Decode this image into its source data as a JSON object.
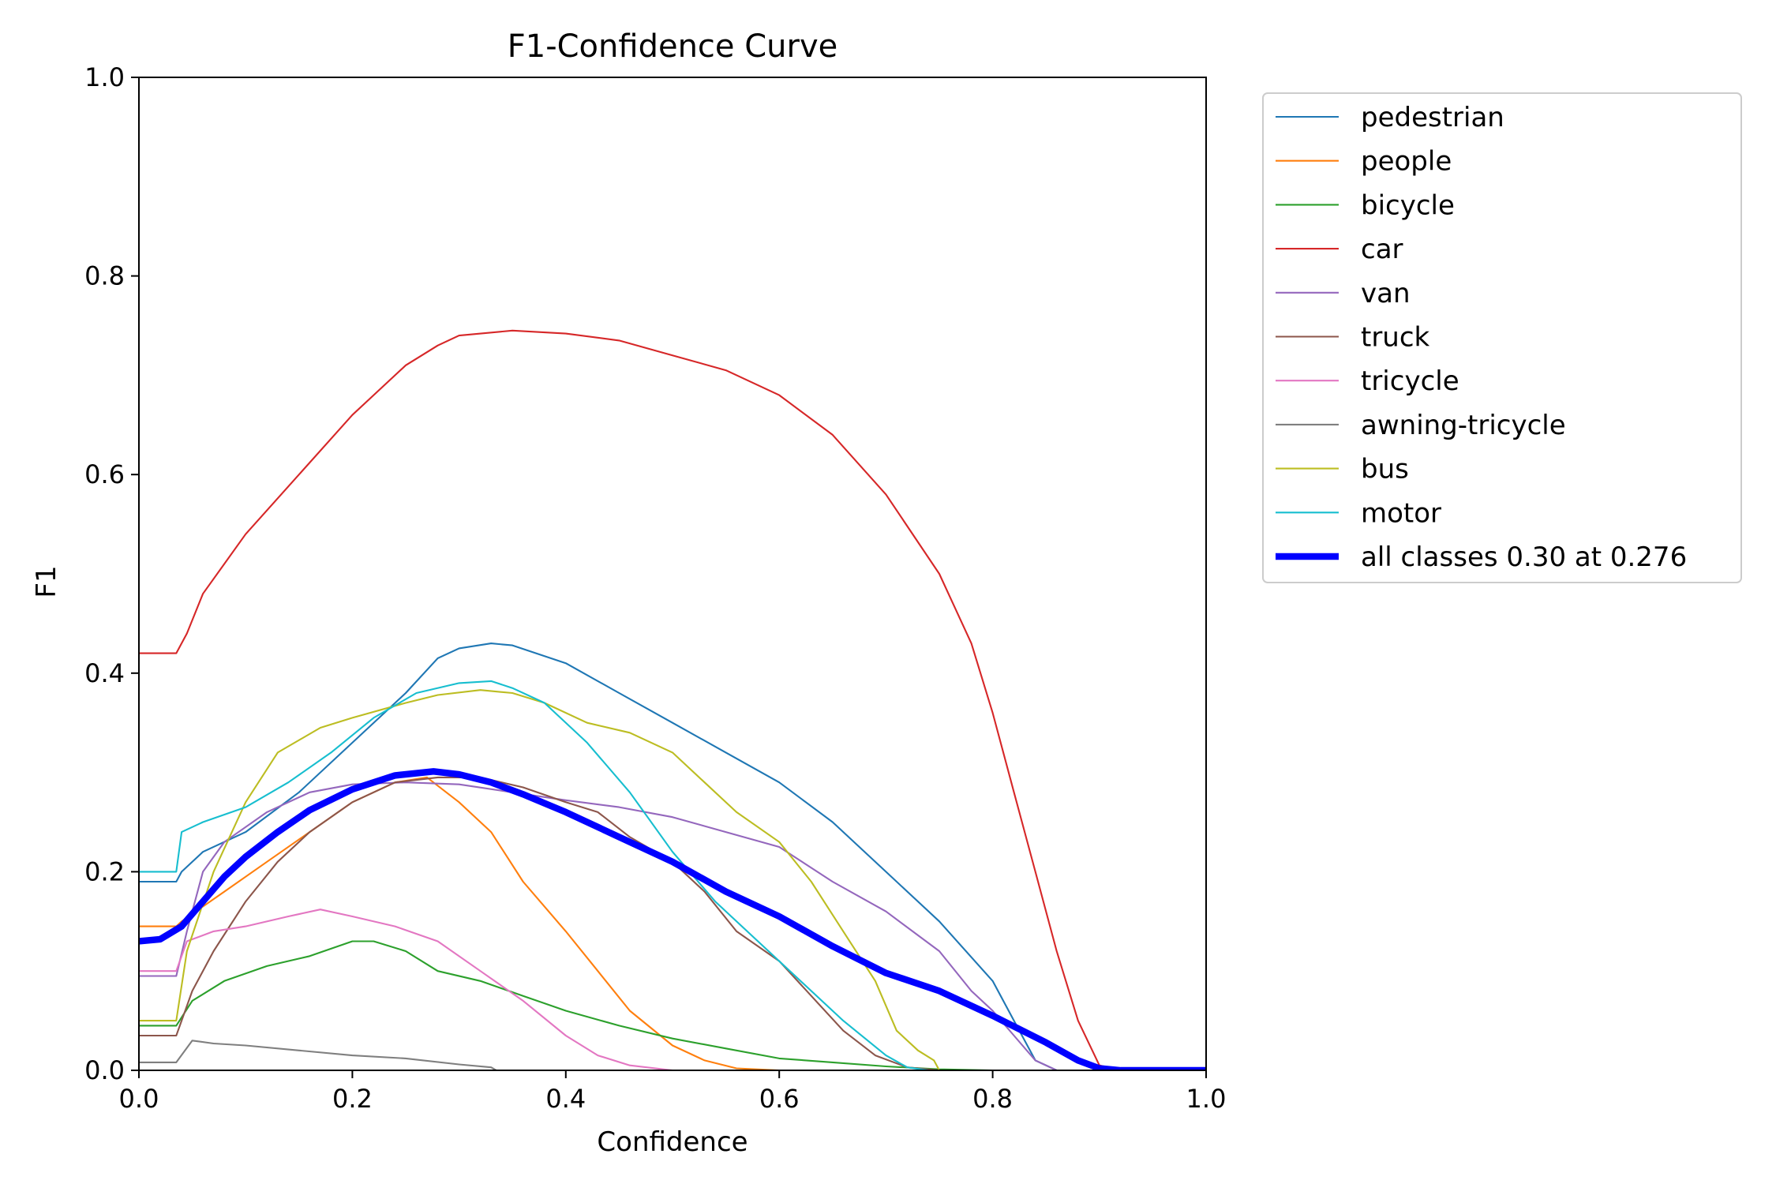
{
  "chart_data": {
    "type": "line",
    "title": "F1-Confidence Curve",
    "xlabel": "Confidence",
    "ylabel": "F1",
    "xlim": [
      0,
      1
    ],
    "ylim": [
      0,
      1
    ],
    "xticks": [
      "0.0",
      "0.2",
      "0.4",
      "0.6",
      "0.8",
      "1.0"
    ],
    "yticks": [
      "0.0",
      "0.2",
      "0.4",
      "0.6",
      "0.8",
      "1.0"
    ],
    "grid": false,
    "legend_position": "outside-top-right",
    "series": [
      {
        "name": "pedestrian",
        "color": "#1f77b4",
        "width": 1.5,
        "points": [
          [
            0,
            0.19
          ],
          [
            0.035,
            0.19
          ],
          [
            0.04,
            0.2
          ],
          [
            0.06,
            0.22
          ],
          [
            0.1,
            0.24
          ],
          [
            0.15,
            0.28
          ],
          [
            0.2,
            0.33
          ],
          [
            0.25,
            0.38
          ],
          [
            0.28,
            0.415
          ],
          [
            0.3,
            0.425
          ],
          [
            0.33,
            0.43
          ],
          [
            0.35,
            0.428
          ],
          [
            0.4,
            0.41
          ],
          [
            0.45,
            0.38
          ],
          [
            0.5,
            0.35
          ],
          [
            0.55,
            0.32
          ],
          [
            0.6,
            0.29
          ],
          [
            0.65,
            0.25
          ],
          [
            0.7,
            0.2
          ],
          [
            0.75,
            0.15
          ],
          [
            0.8,
            0.09
          ],
          [
            0.82,
            0.05
          ],
          [
            0.84,
            0.01
          ],
          [
            0.86,
            0
          ],
          [
            1,
            0
          ]
        ]
      },
      {
        "name": "people",
        "color": "#ff7f0e",
        "width": 1.5,
        "points": [
          [
            0,
            0.145
          ],
          [
            0.035,
            0.145
          ],
          [
            0.04,
            0.15
          ],
          [
            0.08,
            0.18
          ],
          [
            0.12,
            0.21
          ],
          [
            0.16,
            0.24
          ],
          [
            0.2,
            0.27
          ],
          [
            0.24,
            0.29
          ],
          [
            0.27,
            0.295
          ],
          [
            0.3,
            0.27
          ],
          [
            0.33,
            0.24
          ],
          [
            0.36,
            0.19
          ],
          [
            0.4,
            0.14
          ],
          [
            0.43,
            0.1
          ],
          [
            0.46,
            0.06
          ],
          [
            0.5,
            0.025
          ],
          [
            0.53,
            0.01
          ],
          [
            0.56,
            0.002
          ],
          [
            0.6,
            0
          ],
          [
            1,
            0
          ]
        ]
      },
      {
        "name": "bicycle",
        "color": "#2ca02c",
        "width": 1.5,
        "points": [
          [
            0,
            0.045
          ],
          [
            0.035,
            0.045
          ],
          [
            0.05,
            0.07
          ],
          [
            0.08,
            0.09
          ],
          [
            0.12,
            0.105
          ],
          [
            0.16,
            0.115
          ],
          [
            0.2,
            0.13
          ],
          [
            0.22,
            0.13
          ],
          [
            0.25,
            0.12
          ],
          [
            0.28,
            0.1
          ],
          [
            0.32,
            0.09
          ],
          [
            0.36,
            0.075
          ],
          [
            0.4,
            0.06
          ],
          [
            0.45,
            0.045
          ],
          [
            0.5,
            0.032
          ],
          [
            0.55,
            0.022
          ],
          [
            0.6,
            0.012
          ],
          [
            0.65,
            0.008
          ],
          [
            0.7,
            0.004
          ],
          [
            0.75,
            0.001
          ],
          [
            0.8,
            0
          ],
          [
            1,
            0
          ]
        ]
      },
      {
        "name": "car",
        "color": "#d62728",
        "width": 1.5,
        "points": [
          [
            0,
            0.42
          ],
          [
            0.035,
            0.42
          ],
          [
            0.045,
            0.44
          ],
          [
            0.06,
            0.48
          ],
          [
            0.08,
            0.51
          ],
          [
            0.1,
            0.54
          ],
          [
            0.15,
            0.6
          ],
          [
            0.2,
            0.66
          ],
          [
            0.25,
            0.71
          ],
          [
            0.28,
            0.73
          ],
          [
            0.3,
            0.74
          ],
          [
            0.35,
            0.745
          ],
          [
            0.4,
            0.742
          ],
          [
            0.45,
            0.735
          ],
          [
            0.5,
            0.72
          ],
          [
            0.55,
            0.705
          ],
          [
            0.6,
            0.68
          ],
          [
            0.65,
            0.64
          ],
          [
            0.7,
            0.58
          ],
          [
            0.75,
            0.5
          ],
          [
            0.78,
            0.43
          ],
          [
            0.8,
            0.36
          ],
          [
            0.82,
            0.28
          ],
          [
            0.84,
            0.2
          ],
          [
            0.86,
            0.12
          ],
          [
            0.88,
            0.05
          ],
          [
            0.9,
            0.005
          ],
          [
            0.92,
            0
          ],
          [
            1,
            0
          ]
        ]
      },
      {
        "name": "van",
        "color": "#9467bd",
        "width": 1.5,
        "points": [
          [
            0,
            0.095
          ],
          [
            0.035,
            0.095
          ],
          [
            0.045,
            0.14
          ],
          [
            0.06,
            0.2
          ],
          [
            0.08,
            0.23
          ],
          [
            0.12,
            0.26
          ],
          [
            0.16,
            0.28
          ],
          [
            0.2,
            0.288
          ],
          [
            0.25,
            0.29
          ],
          [
            0.3,
            0.288
          ],
          [
            0.35,
            0.28
          ],
          [
            0.4,
            0.272
          ],
          [
            0.45,
            0.265
          ],
          [
            0.5,
            0.255
          ],
          [
            0.55,
            0.24
          ],
          [
            0.6,
            0.225
          ],
          [
            0.65,
            0.19
          ],
          [
            0.7,
            0.16
          ],
          [
            0.75,
            0.12
          ],
          [
            0.78,
            0.08
          ],
          [
            0.8,
            0.06
          ],
          [
            0.82,
            0.035
          ],
          [
            0.84,
            0.01
          ],
          [
            0.86,
            0
          ],
          [
            1,
            0
          ]
        ]
      },
      {
        "name": "truck",
        "color": "#8c564b",
        "width": 1.5,
        "points": [
          [
            0,
            0.035
          ],
          [
            0.035,
            0.035
          ],
          [
            0.05,
            0.08
          ],
          [
            0.07,
            0.12
          ],
          [
            0.1,
            0.17
          ],
          [
            0.13,
            0.21
          ],
          [
            0.16,
            0.24
          ],
          [
            0.2,
            0.27
          ],
          [
            0.24,
            0.29
          ],
          [
            0.28,
            0.295
          ],
          [
            0.32,
            0.295
          ],
          [
            0.36,
            0.285
          ],
          [
            0.4,
            0.27
          ],
          [
            0.43,
            0.26
          ],
          [
            0.46,
            0.235
          ],
          [
            0.5,
            0.21
          ],
          [
            0.53,
            0.18
          ],
          [
            0.56,
            0.14
          ],
          [
            0.6,
            0.11
          ],
          [
            0.63,
            0.075
          ],
          [
            0.66,
            0.04
          ],
          [
            0.69,
            0.015
          ],
          [
            0.72,
            0.003
          ],
          [
            0.75,
            0
          ],
          [
            1,
            0
          ]
        ]
      },
      {
        "name": "tricycle",
        "color": "#e377c2",
        "width": 1.5,
        "points": [
          [
            0,
            0.1
          ],
          [
            0.035,
            0.1
          ],
          [
            0.045,
            0.13
          ],
          [
            0.07,
            0.14
          ],
          [
            0.1,
            0.145
          ],
          [
            0.14,
            0.155
          ],
          [
            0.17,
            0.162
          ],
          [
            0.2,
            0.155
          ],
          [
            0.24,
            0.145
          ],
          [
            0.28,
            0.13
          ],
          [
            0.32,
            0.1
          ],
          [
            0.36,
            0.07
          ],
          [
            0.4,
            0.035
          ],
          [
            0.43,
            0.015
          ],
          [
            0.46,
            0.005
          ],
          [
            0.5,
            0
          ],
          [
            1,
            0
          ]
        ]
      },
      {
        "name": "awning-tricycle",
        "color": "#7f7f7f",
        "width": 1.5,
        "points": [
          [
            0,
            0.008
          ],
          [
            0.035,
            0.008
          ],
          [
            0.05,
            0.03
          ],
          [
            0.07,
            0.027
          ],
          [
            0.1,
            0.025
          ],
          [
            0.15,
            0.02
          ],
          [
            0.2,
            0.015
          ],
          [
            0.25,
            0.012
          ],
          [
            0.3,
            0.006
          ],
          [
            0.33,
            0.003
          ],
          [
            0.335,
            0
          ],
          [
            1,
            0
          ]
        ]
      },
      {
        "name": "bus",
        "color": "#bcbd22",
        "width": 1.5,
        "points": [
          [
            0,
            0.05
          ],
          [
            0.035,
            0.05
          ],
          [
            0.045,
            0.12
          ],
          [
            0.07,
            0.2
          ],
          [
            0.1,
            0.27
          ],
          [
            0.13,
            0.32
          ],
          [
            0.17,
            0.345
          ],
          [
            0.2,
            0.355
          ],
          [
            0.25,
            0.37
          ],
          [
            0.28,
            0.378
          ],
          [
            0.32,
            0.383
          ],
          [
            0.35,
            0.38
          ],
          [
            0.38,
            0.37
          ],
          [
            0.42,
            0.35
          ],
          [
            0.46,
            0.34
          ],
          [
            0.5,
            0.32
          ],
          [
            0.53,
            0.29
          ],
          [
            0.56,
            0.26
          ],
          [
            0.6,
            0.23
          ],
          [
            0.63,
            0.19
          ],
          [
            0.66,
            0.14
          ],
          [
            0.69,
            0.09
          ],
          [
            0.71,
            0.04
          ],
          [
            0.73,
            0.02
          ],
          [
            0.745,
            0.01
          ],
          [
            0.75,
            0
          ],
          [
            1,
            0
          ]
        ]
      },
      {
        "name": "motor",
        "color": "#17becf",
        "width": 1.5,
        "points": [
          [
            0,
            0.2
          ],
          [
            0.035,
            0.2
          ],
          [
            0.04,
            0.24
          ],
          [
            0.06,
            0.25
          ],
          [
            0.1,
            0.265
          ],
          [
            0.14,
            0.29
          ],
          [
            0.18,
            0.32
          ],
          [
            0.22,
            0.355
          ],
          [
            0.26,
            0.38
          ],
          [
            0.3,
            0.39
          ],
          [
            0.33,
            0.392
          ],
          [
            0.35,
            0.385
          ],
          [
            0.38,
            0.37
          ],
          [
            0.42,
            0.33
          ],
          [
            0.46,
            0.28
          ],
          [
            0.5,
            0.22
          ],
          [
            0.54,
            0.17
          ],
          [
            0.58,
            0.13
          ],
          [
            0.62,
            0.09
          ],
          [
            0.66,
            0.05
          ],
          [
            0.7,
            0.015
          ],
          [
            0.72,
            0.003
          ],
          [
            0.74,
            0
          ],
          [
            1,
            0
          ]
        ]
      },
      {
        "name": "all classes 0.30 at 0.276",
        "color": "#0000ff",
        "width": 6,
        "points": [
          [
            0,
            0.13
          ],
          [
            0.02,
            0.132
          ],
          [
            0.04,
            0.145
          ],
          [
            0.06,
            0.17
          ],
          [
            0.08,
            0.195
          ],
          [
            0.1,
            0.215
          ],
          [
            0.13,
            0.24
          ],
          [
            0.16,
            0.262
          ],
          [
            0.2,
            0.283
          ],
          [
            0.24,
            0.297
          ],
          [
            0.276,
            0.301
          ],
          [
            0.3,
            0.298
          ],
          [
            0.33,
            0.29
          ],
          [
            0.36,
            0.278
          ],
          [
            0.4,
            0.26
          ],
          [
            0.45,
            0.235
          ],
          [
            0.5,
            0.21
          ],
          [
            0.55,
            0.18
          ],
          [
            0.6,
            0.155
          ],
          [
            0.65,
            0.125
          ],
          [
            0.7,
            0.098
          ],
          [
            0.75,
            0.08
          ],
          [
            0.8,
            0.055
          ],
          [
            0.85,
            0.028
          ],
          [
            0.88,
            0.01
          ],
          [
            0.9,
            0.002
          ],
          [
            0.92,
            0
          ],
          [
            1,
            0
          ]
        ]
      }
    ]
  }
}
